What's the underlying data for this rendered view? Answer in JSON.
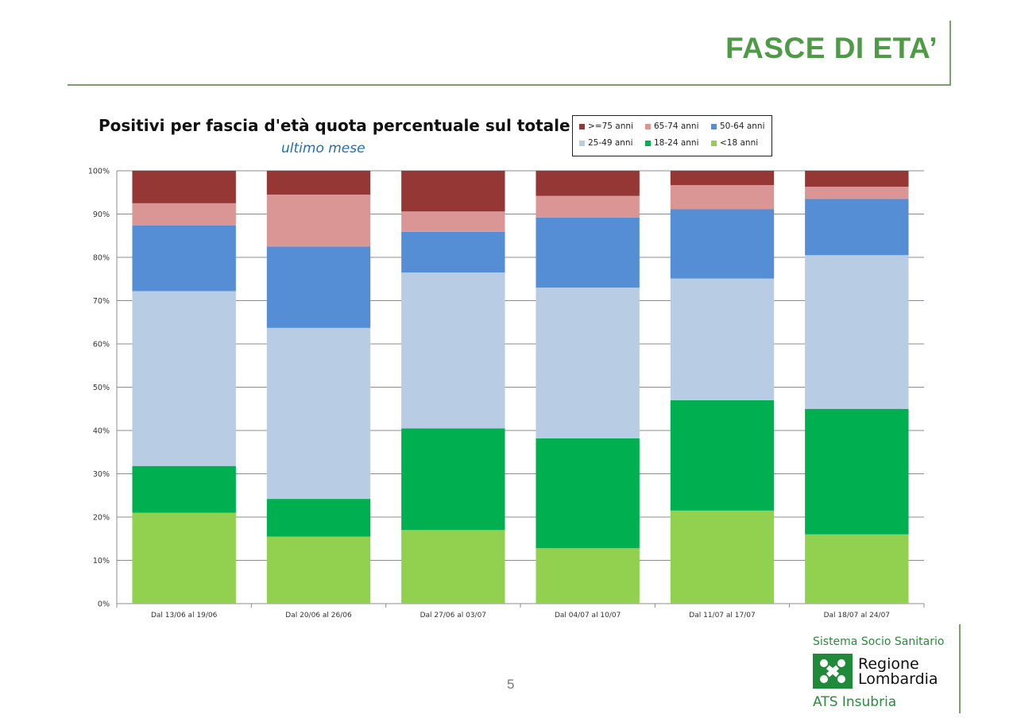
{
  "slide": {
    "title": "FASCE DI ETA’",
    "page_number": "5"
  },
  "logo": {
    "top_line": "Sistema Socio Sanitario",
    "name_line1": "Regione",
    "name_line2": "Lombardia",
    "bottom_line": "ATS Insubria"
  },
  "chart_data": {
    "type": "bar",
    "stacked": true,
    "title": "Positivi per fascia d'età quota percentuale sul totale",
    "subtitle": "ultimo mese",
    "categories": [
      "Dal 13/06 al 19/06",
      "Dal 20/06 al 26/06",
      "Dal 27/06 al 03/07",
      "Dal 04/07 al 10/07",
      "Dal 11/07 al 17/07",
      "Dal 18/07 al 24/07"
    ],
    "series": [
      {
        "name": "<18 anni",
        "color": "#92d050",
        "values": [
          21.0,
          15.5,
          17.0,
          12.8,
          21.5,
          16.0
        ]
      },
      {
        "name": "18-24 anni",
        "color": "#00b050",
        "values": [
          10.8,
          8.7,
          23.5,
          25.4,
          25.5,
          29.0
        ]
      },
      {
        "name": "25-49 anni",
        "color": "#b8cce4",
        "values": [
          40.4,
          39.5,
          36.0,
          34.8,
          28.1,
          35.5
        ]
      },
      {
        "name": "50-64 anni",
        "color": "#558ed5",
        "values": [
          15.2,
          18.8,
          9.4,
          16.2,
          16.0,
          13.0
        ]
      },
      {
        "name": "65-74 anni",
        "color": "#d99694",
        "values": [
          5.1,
          12.0,
          4.7,
          5.0,
          5.6,
          2.8
        ]
      },
      {
        "name": ">=75 anni",
        "color": "#953735",
        "values": [
          7.5,
          5.5,
          9.4,
          5.8,
          3.3,
          3.7
        ]
      }
    ],
    "legend_order": [
      ">=75 anni",
      "65-74 anni",
      "50-64 anni",
      "25-49 anni",
      "18-24 anni",
      "<18 anni"
    ],
    "ylim": [
      0,
      100
    ],
    "yticks": [
      "0%",
      "10%",
      "20%",
      "30%",
      "40%",
      "50%",
      "60%",
      "70%",
      "80%",
      "90%",
      "100%"
    ],
    "grid": true,
    "legend_position": "top-right"
  }
}
